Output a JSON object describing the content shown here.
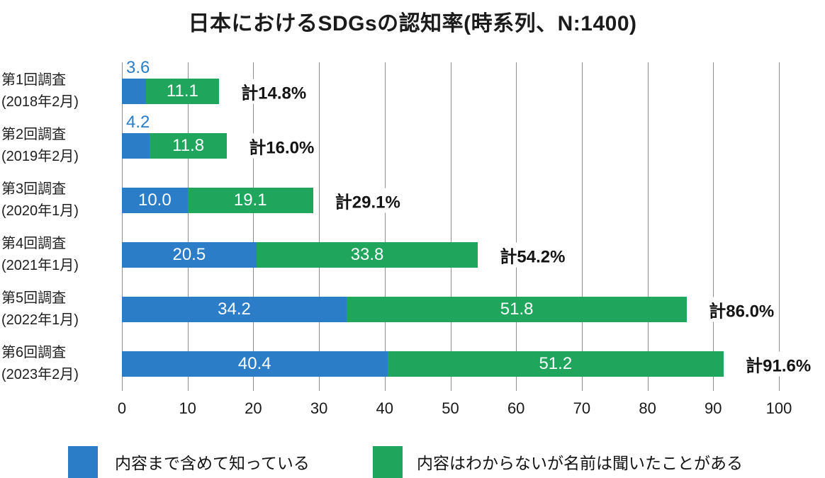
{
  "chart_data": {
    "type": "bar",
    "orientation": "horizontal-stacked",
    "title": "日本におけるSDGsの認知率(時系列、N:1400)",
    "sample_size_note": "N:1400",
    "categories": [
      {
        "line1": "第1回調査",
        "line2": "(2018年2月)"
      },
      {
        "line1": "第2回調査",
        "line2": "(2019年2月)"
      },
      {
        "line1": "第3回調査",
        "line2": "(2020年1月)"
      },
      {
        "line1": "第4回調査",
        "line2": "(2021年1月)"
      },
      {
        "line1": "第5回調査",
        "line2": "(2022年1月)"
      },
      {
        "line1": "第6回調査",
        "line2": "(2023年2月)"
      }
    ],
    "series": [
      {
        "name": "内容まで含めて知っている",
        "color": "#2b7dc7",
        "values": [
          3.6,
          4.2,
          10.0,
          20.5,
          34.2,
          40.4
        ],
        "value_labels": [
          "3.6",
          "4.2",
          "10.0",
          "20.5",
          "34.2",
          "40.4"
        ]
      },
      {
        "name": "内容はわからないが名前は聞いたことがある",
        "color": "#20a65c",
        "values": [
          11.1,
          11.8,
          19.1,
          33.8,
          51.8,
          51.2
        ],
        "value_labels": [
          "11.1",
          "11.8",
          "19.1",
          "33.8",
          "51.8",
          "51.2"
        ]
      }
    ],
    "totals": [
      14.8,
      16.0,
      29.1,
      54.2,
      86.0,
      91.6
    ],
    "total_labels": [
      "計14.8%",
      "計16.0%",
      "計29.1%",
      "計54.2%",
      "計86.0%",
      "計91.6%"
    ],
    "x_ticks": [
      "0",
      "10",
      "20",
      "30",
      "40",
      "50",
      "60",
      "70",
      "80",
      "90",
      "100"
    ],
    "xlim": [
      0,
      100
    ],
    "grid": true,
    "gridline_color": "#8f8f8f",
    "inside_value_color": "#ffffff",
    "legend_position": "bottom",
    "value_above_bar_rows": [
      0,
      1
    ]
  }
}
